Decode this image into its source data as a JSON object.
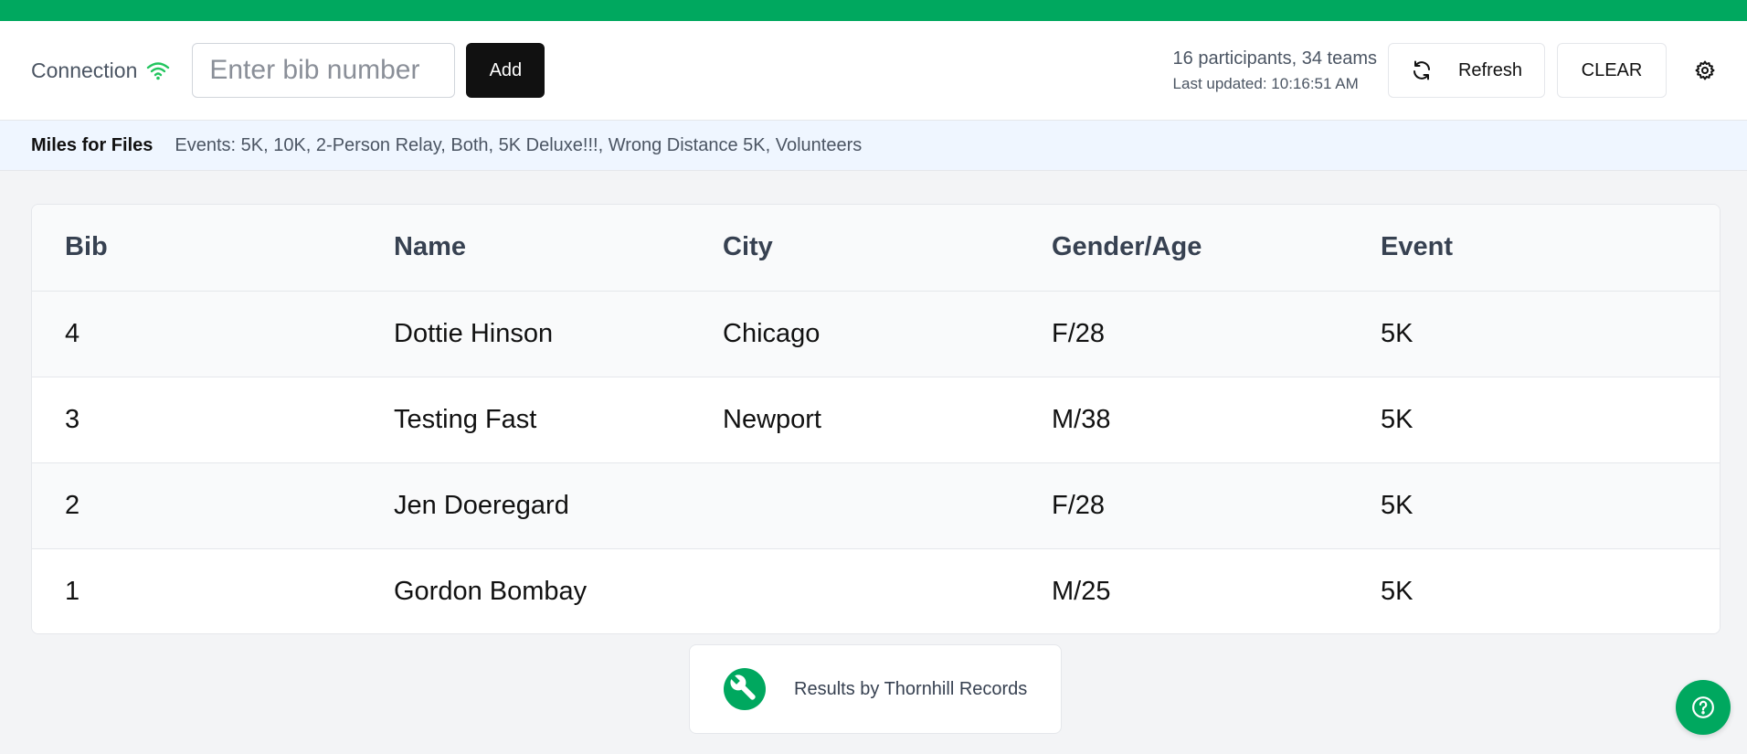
{
  "toolbar": {
    "connection_label": "Connection",
    "bib_placeholder": "Enter bib number",
    "add_label": "Add",
    "participant_summary": "16 participants, 34 teams",
    "last_updated": "Last updated: 10:16:51 AM",
    "refresh_label": "Refresh",
    "clear_label": "CLEAR"
  },
  "event_bar": {
    "race_name": "Miles for Files",
    "events": "Events: 5K, 10K, 2-Person Relay, Both, 5K Deluxe!!!, Wrong Distance 5K, Volunteers"
  },
  "table": {
    "headers": [
      "Bib",
      "Name",
      "City",
      "Gender/Age",
      "Event"
    ],
    "rows": [
      {
        "bib": "4",
        "name": "Dottie Hinson",
        "city": "Chicago",
        "gender_age": "F/28",
        "event": "5K"
      },
      {
        "bib": "3",
        "name": "Testing Fast",
        "city": "Newport",
        "gender_age": "M/38",
        "event": "5K"
      },
      {
        "bib": "2",
        "name": "Jen Doeregard",
        "city": "",
        "gender_age": "F/28",
        "event": "5K"
      },
      {
        "bib": "1",
        "name": "Gordon Bombay",
        "city": "",
        "gender_age": "M/25",
        "event": "5K"
      }
    ]
  },
  "footer": {
    "credit": "Results by Thornhill Records"
  },
  "colors": {
    "accent": "#00a85f",
    "event_bar_bg": "#eff6ff"
  },
  "icons": {
    "connection": "wifi-icon",
    "refresh": "refresh-icon",
    "settings": "gear-icon",
    "logo": "wrench-logo-icon",
    "help": "help-icon"
  }
}
